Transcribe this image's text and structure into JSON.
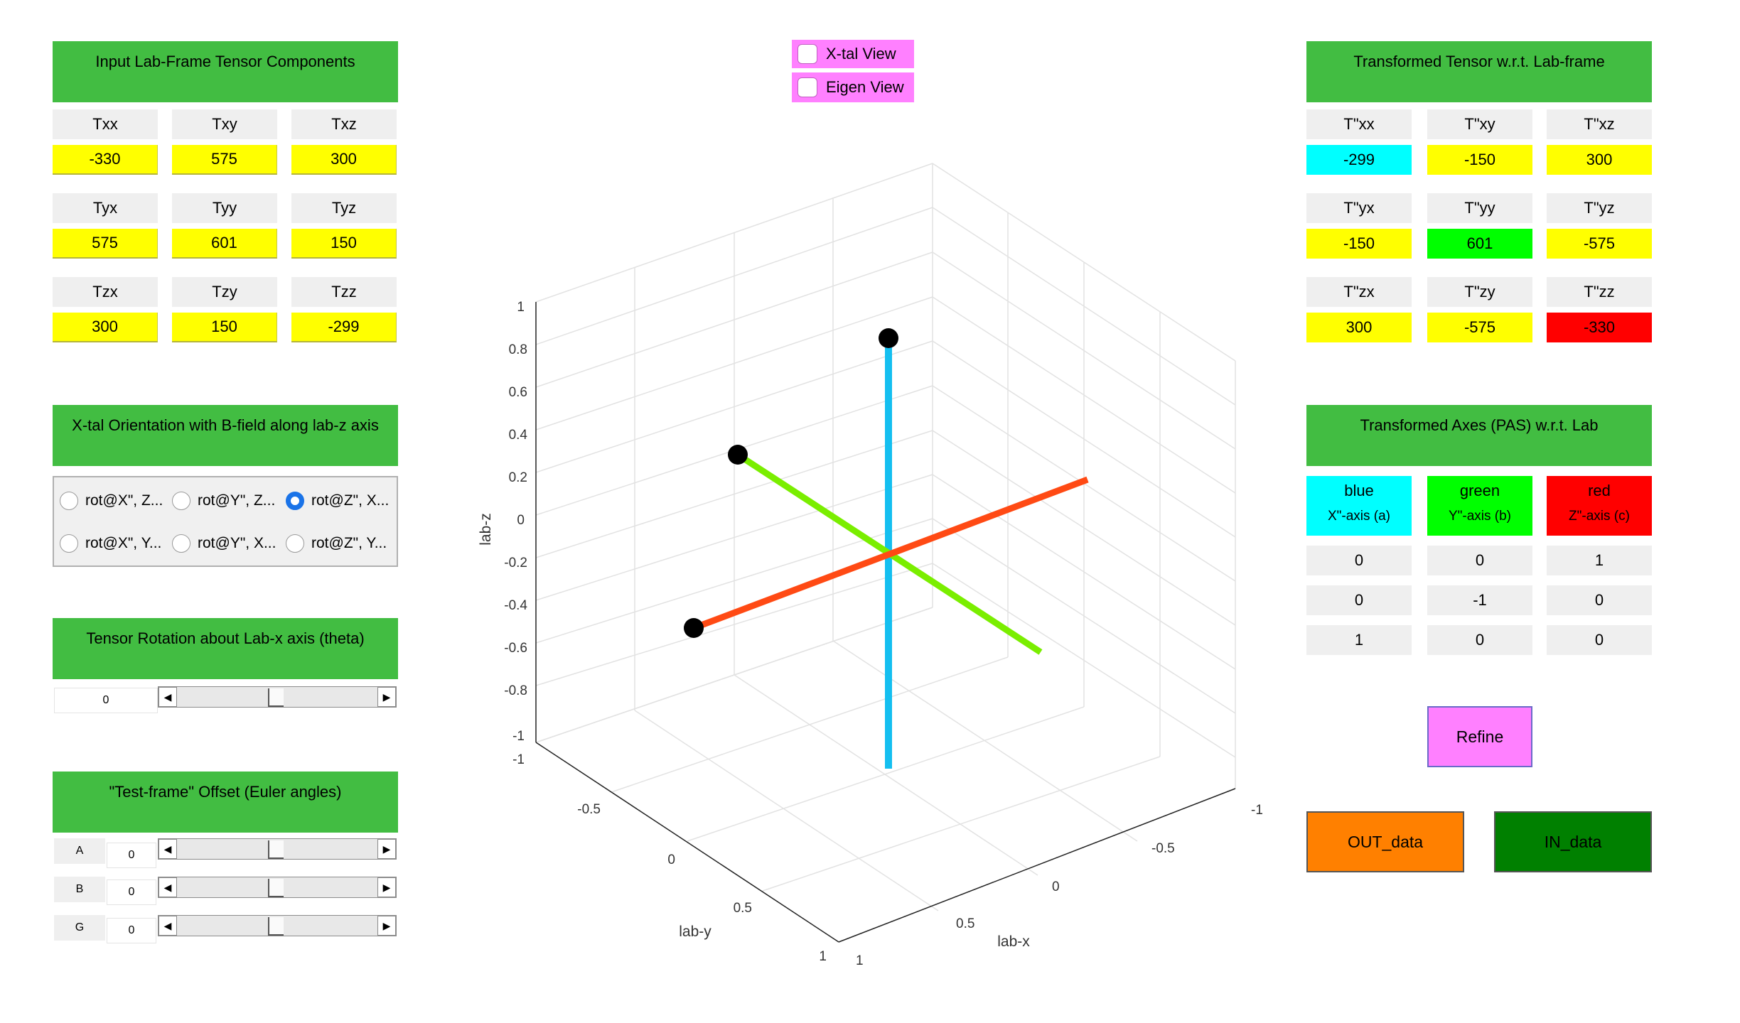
{
  "input_panel": {
    "title": "Input Lab-Frame Tensor Components",
    "labels": [
      [
        "Txx",
        "Txy",
        "Txz"
      ],
      [
        "Tyx",
        "Tyy",
        "Tyz"
      ],
      [
        "Tzx",
        "Tzy",
        "Tzz"
      ]
    ],
    "values": [
      [
        "-330",
        "575",
        "300"
      ],
      [
        "575",
        "601",
        "150"
      ],
      [
        "300",
        "150",
        "-299"
      ]
    ]
  },
  "orientation_panel": {
    "title": "X-tal Orientation with B-field along lab-z axis",
    "options": [
      "rot@X\", Z...",
      "rot@Y\", Z...",
      "rot@Z\", X...",
      "rot@X\", Y...",
      "rot@Y\", X...",
      "rot@Z\", Y..."
    ],
    "selected_index": 2
  },
  "rotation_panel": {
    "title": "Tensor Rotation about Lab-x axis (theta)",
    "value": "0",
    "slider_fraction": 0.5
  },
  "offset_panel": {
    "title": "\"Test-frame\" Offset (Euler angles)",
    "rows": [
      {
        "label": "A",
        "value": "0",
        "slider_fraction": 0.5
      },
      {
        "label": "B",
        "value": "0",
        "slider_fraction": 0.5
      },
      {
        "label": "G",
        "value": "0",
        "slider_fraction": 0.5
      }
    ]
  },
  "view_toggles": {
    "xtal_view": {
      "label": "X-tal View",
      "checked": false
    },
    "eigen_view": {
      "label": "Eigen View",
      "checked": false
    }
  },
  "plot": {
    "zlabel": "lab-z",
    "ylabel": "lab-y",
    "xlabel": "lab-x",
    "z_ticks": [
      "1",
      "0.8",
      "0.6",
      "0.4",
      "0.2",
      "0",
      "-0.2",
      "-0.4",
      "-0.6",
      "-0.8",
      "-1"
    ],
    "y_ticks": [
      "-1",
      "-0.5",
      "0",
      "0.5",
      "1"
    ],
    "x_ticks": [
      "1",
      "0.5",
      "0",
      "-0.5",
      "-1"
    ],
    "colors": {
      "blue_axis": "#14bff0",
      "green_axis": "#7aee00",
      "red_axis": "#ff4a14"
    }
  },
  "transformed_panel": {
    "title": "Transformed Tensor w.r.t. Lab-frame",
    "labels": [
      [
        "T\"xx",
        "T\"xy",
        "T\"xz"
      ],
      [
        "T\"yx",
        "T\"yy",
        "T\"yz"
      ],
      [
        "T\"zx",
        "T\"zy",
        "T\"zz"
      ]
    ],
    "values": [
      [
        "-299",
        "-150",
        "300"
      ],
      [
        "-150",
        "601",
        "-575"
      ],
      [
        "300",
        "-575",
        "-330"
      ]
    ]
  },
  "axes_panel": {
    "title": "Transformed Axes (PAS) w.r.t. Lab",
    "headers": [
      {
        "color": "blue",
        "axis": "X\"-axis (a)"
      },
      {
        "color": "green",
        "axis": "Y\"-axis (b)"
      },
      {
        "color": "red",
        "axis": "Z\"-axis (c)"
      }
    ],
    "rows": [
      [
        "0",
        "0",
        "1"
      ],
      [
        "0",
        "-1",
        "0"
      ],
      [
        "1",
        "0",
        "0"
      ]
    ]
  },
  "buttons": {
    "refine": "Refine",
    "out_data": "OUT_data",
    "in_data": "IN_data"
  }
}
